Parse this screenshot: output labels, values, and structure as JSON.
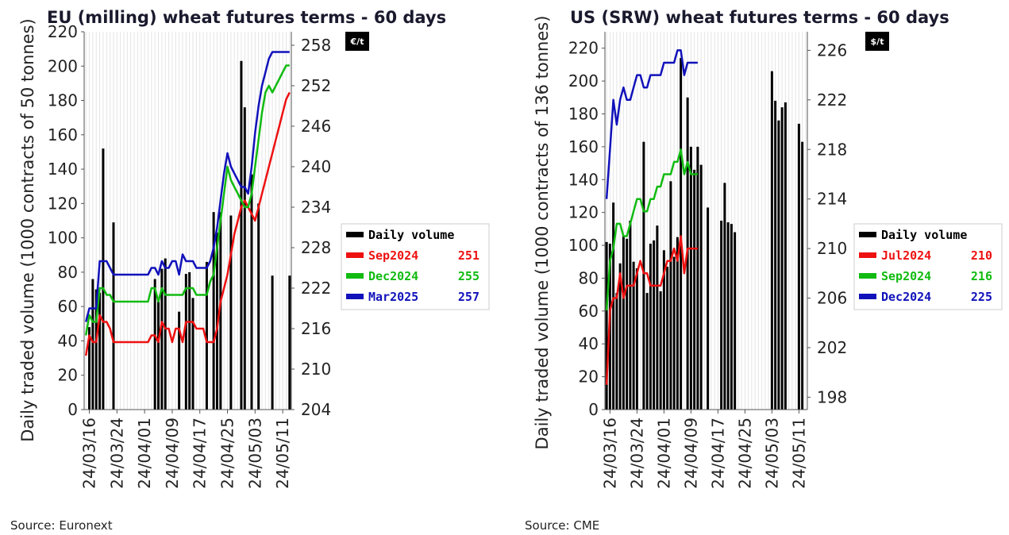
{
  "chart_data": [
    {
      "type": "bar+line",
      "title": "EU (milling) wheat futures terms - 60 days",
      "unit_label": "€/t",
      "ylabel": "Daily traded volume (1000 contracts of 50 tonnes)",
      "source": "Source: Euronext",
      "ylim": [
        0,
        220
      ],
      "yticks": [
        0,
        20,
        40,
        60,
        80,
        100,
        120,
        140,
        160,
        180,
        200,
        220
      ],
      "y2lim": [
        204,
        260
      ],
      "y2ticks": [
        204,
        210,
        216,
        222,
        228,
        234,
        240,
        246,
        252,
        258
      ],
      "x_tick_labels": [
        "24/03/16",
        "24/03/24",
        "24/04/01",
        "24/04/09",
        "24/04/17",
        "24/04/25",
        "24/05/03",
        "24/05/11"
      ],
      "x_count": 60,
      "x_tick_indices": [
        1,
        9,
        17,
        25,
        33,
        41,
        49,
        57
      ],
      "grid": "vertical",
      "legend_position": "right",
      "bars": {
        "name": "Daily volume",
        "color": "#000000",
        "values": [
          0,
          48,
          76,
          70,
          68,
          152,
          0,
          0,
          109,
          0,
          0,
          0,
          0,
          0,
          0,
          0,
          0,
          0,
          0,
          0,
          76,
          63,
          82,
          88,
          0,
          0,
          0,
          57,
          0,
          79,
          80,
          65,
          0,
          0,
          0,
          86,
          0,
          115,
          103,
          115,
          0,
          0,
          113,
          0,
          0,
          203,
          176,
          0,
          137,
          0,
          120,
          0,
          0,
          0,
          78,
          0,
          0,
          0,
          0,
          78
        ]
      },
      "series": [
        {
          "name": "Sep2024",
          "legend_value": "251",
          "color": "#ee1111",
          "values": [
            212,
            215,
            214,
            214,
            218,
            217,
            217,
            216,
            214,
            214,
            214,
            214,
            214,
            214,
            214,
            214,
            214,
            214,
            214,
            215,
            215,
            214,
            217,
            216,
            216,
            214,
            216,
            216,
            214,
            217,
            217,
            217,
            216,
            216,
            216,
            214,
            214,
            214,
            216,
            220,
            222,
            224,
            227,
            230,
            232,
            234,
            235,
            234,
            233,
            232,
            234,
            236,
            238,
            240,
            242,
            244,
            246,
            248,
            250,
            251
          ]
        },
        {
          "name": "Dec2024",
          "legend_value": "255",
          "color": "#11bb11",
          "values": [
            215,
            218,
            217,
            217,
            222,
            222,
            221,
            221,
            220,
            220,
            220,
            220,
            220,
            220,
            220,
            220,
            220,
            220,
            220,
            222,
            222,
            220,
            222,
            221,
            221,
            221,
            221,
            221,
            221,
            222,
            222,
            222,
            221,
            221,
            221,
            221,
            223,
            224,
            228,
            232,
            236,
            240,
            238,
            237,
            236,
            235,
            234,
            234,
            236,
            240,
            244,
            248,
            251,
            252,
            251,
            252,
            253,
            254,
            255,
            255
          ]
        },
        {
          "name": "Mar2025",
          "legend_value": "257",
          "color": "#1111bb",
          "values": [
            217,
            219,
            219,
            219,
            226,
            226,
            226,
            225,
            224,
            224,
            224,
            224,
            224,
            224,
            224,
            224,
            224,
            224,
            224,
            225,
            225,
            224,
            226,
            225,
            225,
            226,
            226,
            224,
            227,
            226,
            226,
            226,
            225,
            225,
            225,
            225,
            226,
            228,
            231,
            235,
            239,
            242,
            240,
            239,
            238,
            237,
            237,
            236,
            240,
            245,
            249,
            252,
            254,
            256,
            257,
            257,
            257,
            257,
            257,
            257
          ]
        }
      ]
    },
    {
      "type": "bar+line",
      "title": "US (SRW) wheat futures terms - 60 days",
      "unit_label": "$/t",
      "ylabel": "Daily traded volume (1000 contracts of 136 tonnes)",
      "source": "Source: CME",
      "ylim": [
        0,
        230
      ],
      "yticks": [
        0,
        20,
        40,
        60,
        80,
        100,
        120,
        140,
        160,
        180,
        200,
        220
      ],
      "y2lim": [
        197,
        227.5
      ],
      "y2ticks": [
        198,
        202,
        206,
        210,
        214,
        218,
        222,
        226
      ],
      "x_tick_labels": [
        "24/03/16",
        "24/03/24",
        "24/04/01",
        "24/04/09",
        "24/04/17",
        "24/04/25",
        "24/05/03",
        "24/05/11"
      ],
      "x_count": 60,
      "x_tick_indices": [
        1,
        9,
        17,
        25,
        33,
        41,
        49,
        57
      ],
      "grid": "vertical",
      "legend_position": "right",
      "bars": {
        "name": "Daily volume",
        "color": "#000000",
        "values": [
          102,
          101,
          126,
          71,
          89,
          106,
          104,
          115,
          90,
          86,
          0,
          163,
          71,
          101,
          103,
          112,
          72,
          97,
          87,
          139,
          93,
          105,
          214,
          0,
          190,
          160,
          146,
          160,
          149,
          0,
          123,
          0,
          0,
          0,
          115,
          138,
          114,
          113,
          108,
          0,
          0,
          0,
          0,
          0,
          0,
          0,
          0,
          0,
          0,
          206,
          188,
          176,
          184,
          187,
          0,
          0,
          0,
          174,
          163,
          0
        ]
      },
      "series": [
        {
          "name": "Jul2024",
          "legend_value": "210",
          "color": "#ee1111",
          "values": [
            199,
            205,
            206,
            206,
            208,
            206,
            207,
            207,
            207,
            208,
            209,
            208,
            208,
            207,
            207,
            207,
            207,
            208,
            209,
            209,
            210,
            209,
            211,
            208,
            210,
            210,
            210,
            210
          ]
        },
        {
          "name": "Sep2024",
          "legend_value": "216",
          "color": "#11bb11",
          "values": [
            205,
            209,
            210,
            212,
            212,
            211,
            211,
            212,
            213,
            214,
            214,
            213,
            213,
            214,
            214,
            215,
            215,
            216,
            216,
            216,
            217,
            217,
            218,
            216,
            217,
            216,
            216,
            216
          ]
        },
        {
          "name": "Dec2024",
          "legend_value": "225",
          "color": "#1111bb",
          "values": [
            214,
            218,
            222,
            220,
            222,
            223,
            222,
            222,
            223,
            224,
            224,
            223,
            223,
            224,
            224,
            224,
            224,
            225,
            225,
            225,
            225,
            226,
            226,
            224,
            225,
            225,
            225,
            225
          ]
        }
      ]
    }
  ]
}
